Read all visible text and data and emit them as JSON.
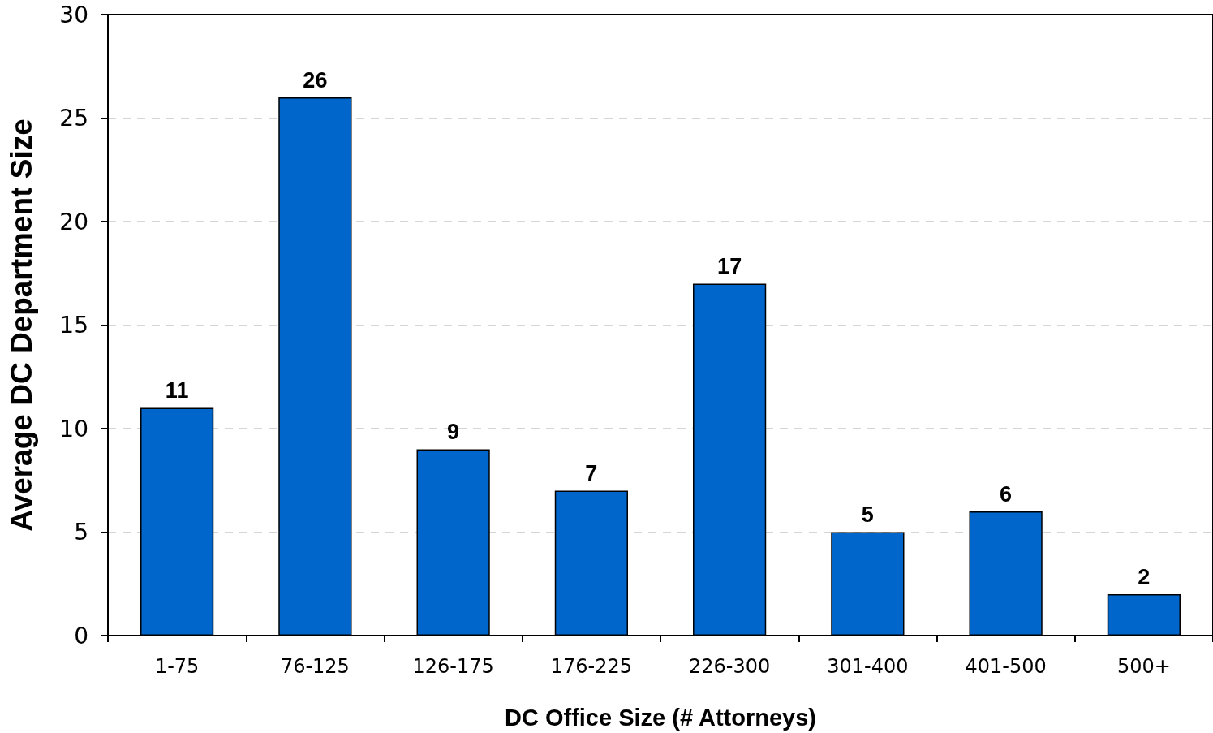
{
  "chart_data": {
    "type": "bar",
    "xlabel": "DC Office Size (# Attorneys)",
    "ylabel": "Average DC Department Size",
    "categories": [
      "1-75",
      "76-125",
      "126-175",
      "176-225",
      "226-300",
      "301-400",
      "401-500",
      "500+"
    ],
    "values": [
      11,
      26,
      9,
      7,
      17,
      5,
      6,
      2
    ],
    "color": "#0066cc",
    "ylim": [
      0,
      30
    ],
    "yticks": [
      0,
      5,
      10,
      15,
      20,
      25,
      30
    ],
    "grid": "y",
    "data_labels": true
  }
}
